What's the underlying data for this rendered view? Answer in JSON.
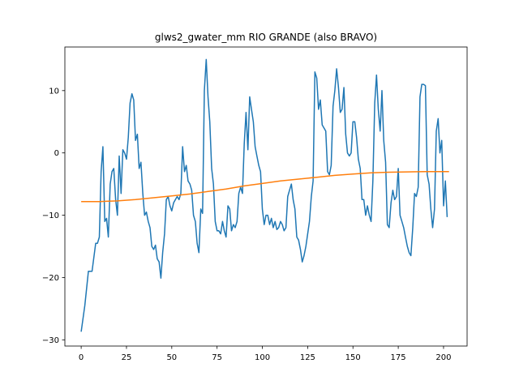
{
  "chart_data": {
    "type": "line",
    "title": "glws2_gwater_mm RIO GRANDE (also BRAVO)",
    "xlabel": "",
    "ylabel": "",
    "xlim": [
      -9,
      213
    ],
    "ylim": [
      -31,
      17
    ],
    "xticks": [
      0,
      25,
      50,
      75,
      100,
      125,
      150,
      175,
      200
    ],
    "yticks": [
      -30,
      -20,
      -10,
      0,
      10
    ],
    "grid": false,
    "series": [
      {
        "color": "#1f77b4",
        "points": [
          [
            0,
            -28.7
          ],
          [
            2,
            -24.5
          ],
          [
            4,
            -19
          ],
          [
            6,
            -19
          ],
          [
            8,
            -14.5
          ],
          [
            9,
            -14.5
          ],
          [
            10,
            -13.5
          ],
          [
            11,
            -3
          ],
          [
            12,
            1
          ],
          [
            13,
            -11
          ],
          [
            14,
            -10.5
          ],
          [
            15,
            -13.5
          ],
          [
            16,
            -5
          ],
          [
            17,
            -3
          ],
          [
            18,
            -2.5
          ],
          [
            19,
            -7.5
          ],
          [
            20,
            -10
          ],
          [
            21,
            -0.5
          ],
          [
            22,
            -6.5
          ],
          [
            23,
            0.5
          ],
          [
            24,
            0
          ],
          [
            25,
            -1
          ],
          [
            26,
            2.5
          ],
          [
            27,
            8
          ],
          [
            28,
            9.5
          ],
          [
            29,
            8.5
          ],
          [
            30,
            2
          ],
          [
            31,
            3
          ],
          [
            32,
            -2.5
          ],
          [
            33,
            -1.5
          ],
          [
            34,
            -6.5
          ],
          [
            35,
            -10
          ],
          [
            36,
            -9.5
          ],
          [
            37,
            -11
          ],
          [
            38,
            -12
          ],
          [
            39,
            -15
          ],
          [
            40,
            -15.5
          ],
          [
            41,
            -14.8
          ],
          [
            42,
            -17
          ],
          [
            43,
            -17.5
          ],
          [
            44,
            -20.1
          ],
          [
            45,
            -16
          ],
          [
            46,
            -13
          ],
          [
            47,
            -7.5
          ],
          [
            48,
            -7
          ],
          [
            49,
            -8.5
          ],
          [
            50,
            -9.3
          ],
          [
            51,
            -8
          ],
          [
            52,
            -7.5
          ],
          [
            53,
            -7
          ],
          [
            54,
            -7.5
          ],
          [
            55,
            -6.5
          ],
          [
            56,
            1
          ],
          [
            57,
            -3
          ],
          [
            58,
            -2
          ],
          [
            59,
            -4.5
          ],
          [
            60,
            -5
          ],
          [
            61,
            -6
          ],
          [
            62,
            -10
          ],
          [
            63,
            -11
          ],
          [
            64,
            -14.5
          ],
          [
            65,
            -16
          ],
          [
            66,
            -9
          ],
          [
            67,
            -9.7
          ],
          [
            68,
            10
          ],
          [
            69,
            15
          ],
          [
            70,
            9
          ],
          [
            71,
            5
          ],
          [
            72,
            -2.5
          ],
          [
            73,
            -5
          ],
          [
            74,
            -11
          ],
          [
            75,
            -12.5
          ],
          [
            76,
            -12.5
          ],
          [
            77,
            -13
          ],
          [
            78,
            -11
          ],
          [
            79,
            -12.5
          ],
          [
            80,
            -13.5
          ],
          [
            81,
            -8.5
          ],
          [
            82,
            -9
          ],
          [
            83,
            -12.5
          ],
          [
            84,
            -11.5
          ],
          [
            85,
            -12
          ],
          [
            86,
            -11
          ],
          [
            87,
            -6.5
          ],
          [
            88,
            -5.5
          ],
          [
            89,
            -6.5
          ],
          [
            90,
            1.5
          ],
          [
            91,
            6.5
          ],
          [
            92,
            0.5
          ],
          [
            93,
            9
          ],
          [
            94,
            7
          ],
          [
            95,
            5
          ],
          [
            96,
            1
          ],
          [
            97,
            -0.5
          ],
          [
            98,
            -2
          ],
          [
            99,
            -3
          ],
          [
            100,
            -9
          ],
          [
            101,
            -11.5
          ],
          [
            102,
            -10
          ],
          [
            103,
            -10
          ],
          [
            104,
            -11.5
          ],
          [
            105,
            -10.5
          ],
          [
            106,
            -12
          ],
          [
            107,
            -11
          ],
          [
            108,
            -12.3
          ],
          [
            109,
            -12
          ],
          [
            110,
            -11
          ],
          [
            111,
            -11.5
          ],
          [
            112,
            -12.5
          ],
          [
            113,
            -12
          ],
          [
            114,
            -7
          ],
          [
            115,
            -6
          ],
          [
            116,
            -5
          ],
          [
            117,
            -7.5
          ],
          [
            118,
            -9
          ],
          [
            119,
            -13.5
          ],
          [
            120,
            -14
          ],
          [
            121,
            -15.5
          ],
          [
            122,
            -17.5
          ],
          [
            123,
            -16.5
          ],
          [
            124,
            -15
          ],
          [
            125,
            -13
          ],
          [
            126,
            -11
          ],
          [
            127,
            -7
          ],
          [
            128,
            -4.5
          ],
          [
            129,
            13
          ],
          [
            130,
            12
          ],
          [
            131,
            7
          ],
          [
            132,
            8.5
          ],
          [
            133,
            4.5
          ],
          [
            134,
            4
          ],
          [
            135,
            3.5
          ],
          [
            136,
            -3
          ],
          [
            137,
            -3.5
          ],
          [
            138,
            -2
          ],
          [
            139,
            7.5
          ],
          [
            140,
            10
          ],
          [
            141,
            13.5
          ],
          [
            142,
            10.5
          ],
          [
            143,
            6.5
          ],
          [
            144,
            7
          ],
          [
            145,
            10.5
          ],
          [
            146,
            3
          ],
          [
            147,
            0
          ],
          [
            148,
            -0.5
          ],
          [
            149,
            0
          ],
          [
            150,
            5
          ],
          [
            151,
            5
          ],
          [
            152,
            2.5
          ],
          [
            153,
            -1
          ],
          [
            154,
            -2.5
          ],
          [
            155,
            -7.5
          ],
          [
            156,
            -7.5
          ],
          [
            157,
            -10
          ],
          [
            158,
            -8.5
          ],
          [
            159,
            -10
          ],
          [
            160,
            -11
          ],
          [
            161,
            -4.5
          ],
          [
            162,
            8
          ],
          [
            163,
            12.5
          ],
          [
            164,
            7
          ],
          [
            165,
            3.5
          ],
          [
            166,
            10
          ],
          [
            167,
            2
          ],
          [
            168,
            -1.5
          ],
          [
            169,
            -11.5
          ],
          [
            170,
            -12
          ],
          [
            171,
            -8
          ],
          [
            172,
            -6
          ],
          [
            173,
            -7.5
          ],
          [
            174,
            -7
          ],
          [
            175,
            -2.5
          ],
          [
            176,
            -10
          ],
          [
            177,
            -11
          ],
          [
            178,
            -12
          ],
          [
            179,
            -13.5
          ],
          [
            180,
            -15
          ],
          [
            181,
            -16
          ],
          [
            182,
            -16.5
          ],
          [
            183,
            -12
          ],
          [
            184,
            -6.5
          ],
          [
            185,
            -7
          ],
          [
            186,
            -5.5
          ],
          [
            187,
            9
          ],
          [
            188,
            11
          ],
          [
            189,
            11
          ],
          [
            190,
            10.8
          ],
          [
            191,
            -3.5
          ],
          [
            192,
            -5
          ],
          [
            193,
            -9
          ],
          [
            194,
            -12
          ],
          [
            195,
            -9
          ],
          [
            196,
            3.5
          ],
          [
            197,
            5.5
          ],
          [
            198,
            0
          ],
          [
            199,
            2
          ],
          [
            200,
            -8.5
          ],
          [
            201,
            -4.5
          ],
          [
            202,
            -10.3
          ]
        ]
      },
      {
        "color": "#ff7f0e",
        "points": [
          [
            0,
            -7.8
          ],
          [
            10,
            -7.8
          ],
          [
            20,
            -7.7
          ],
          [
            30,
            -7.5
          ],
          [
            40,
            -7.2
          ],
          [
            50,
            -6.9
          ],
          [
            60,
            -6.6
          ],
          [
            70,
            -6.2
          ],
          [
            80,
            -5.8
          ],
          [
            90,
            -5.3
          ],
          [
            100,
            -4.9
          ],
          [
            110,
            -4.5
          ],
          [
            120,
            -4.2
          ],
          [
            130,
            -3.9
          ],
          [
            140,
            -3.6
          ],
          [
            150,
            -3.4
          ],
          [
            160,
            -3.2
          ],
          [
            170,
            -3.1
          ],
          [
            180,
            -3.05
          ],
          [
            190,
            -3
          ],
          [
            203,
            -3
          ]
        ]
      }
    ]
  }
}
